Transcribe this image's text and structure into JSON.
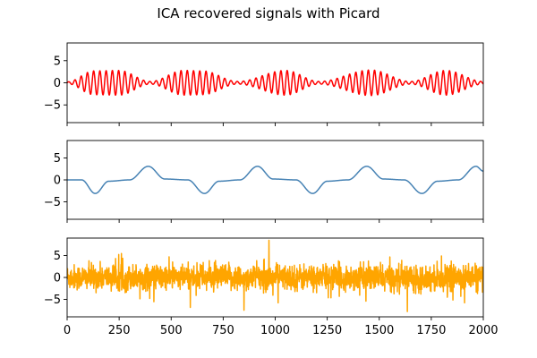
{
  "chart_data": {
    "type": "line",
    "title": "ICA recovered signals with Picard",
    "x": {
      "range": [
        0,
        2000
      ],
      "ticks": [
        0,
        250,
        500,
        750,
        1000,
        1250,
        1500,
        1750,
        2000
      ]
    },
    "panels": [
      {
        "name": "",
        "color": "#ff0000",
        "ylim": [
          -9,
          9
        ],
        "yticks": [
          5,
          0,
          -5
        ],
        "signal": "amplitude-modulated sinusoid",
        "amplitude_max": 2.8,
        "carrier_period": 30,
        "envelope_period": 530,
        "approx_envelope": [
          {
            "x": 0,
            "y": 0.2
          },
          {
            "x": 130,
            "y": 2.7
          },
          {
            "x": 250,
            "y": 2.8
          },
          {
            "x": 400,
            "y": 0.3
          },
          {
            "x": 560,
            "y": 2.8
          },
          {
            "x": 650,
            "y": 2.7
          },
          {
            "x": 820,
            "y": 0.3
          },
          {
            "x": 1050,
            "y": 2.8
          },
          {
            "x": 1210,
            "y": 0.3
          },
          {
            "x": 1460,
            "y": 2.9
          },
          {
            "x": 1650,
            "y": 0.3
          },
          {
            "x": 1820,
            "y": 2.8
          },
          {
            "x": 2000,
            "y": 0.3
          }
        ]
      },
      {
        "name": "",
        "color": "#4682b4",
        "ylim": [
          -9,
          9
        ],
        "yticks": [
          5,
          0,
          -5
        ],
        "signal": "smooth periodic waveform",
        "amplitude": 3.2,
        "period": 520,
        "approx_points": [
          {
            "x": 0,
            "y": 0
          },
          {
            "x": 70,
            "y": 0
          },
          {
            "x": 135,
            "y": -3.1
          },
          {
            "x": 200,
            "y": -0.3
          },
          {
            "x": 300,
            "y": 0
          },
          {
            "x": 390,
            "y": 3.1
          },
          {
            "x": 470,
            "y": 0.2
          },
          {
            "x": 580,
            "y": 0
          },
          {
            "x": 660,
            "y": -3.1
          },
          {
            "x": 730,
            "y": -0.3
          },
          {
            "x": 830,
            "y": 0
          },
          {
            "x": 915,
            "y": 3.1
          },
          {
            "x": 990,
            "y": 0.2
          },
          {
            "x": 1100,
            "y": 0
          },
          {
            "x": 1180,
            "y": -3.1
          },
          {
            "x": 1250,
            "y": -0.3
          },
          {
            "x": 1350,
            "y": 0
          },
          {
            "x": 1440,
            "y": 3.1
          },
          {
            "x": 1520,
            "y": 0.2
          },
          {
            "x": 1620,
            "y": 0
          },
          {
            "x": 1705,
            "y": -3.1
          },
          {
            "x": 1780,
            "y": -0.3
          },
          {
            "x": 1880,
            "y": 0
          },
          {
            "x": 1965,
            "y": 3.1
          },
          {
            "x": 2000,
            "y": 2.0
          }
        ]
      },
      {
        "name": "",
        "color": "#ffa500",
        "ylim": [
          -9,
          9
        ],
        "yticks": [
          5,
          0,
          -5
        ],
        "signal": "noise",
        "spread": 2.0,
        "approx_range": [
          -7.8,
          8.5
        ],
        "approx_extremes": [
          {
            "x": 850,
            "y": -7.5
          },
          {
            "x": 970,
            "y": 8.5
          },
          {
            "x": 1635,
            "y": -7.8
          },
          {
            "x": 1910,
            "y": -5.8
          }
        ]
      }
    ]
  }
}
